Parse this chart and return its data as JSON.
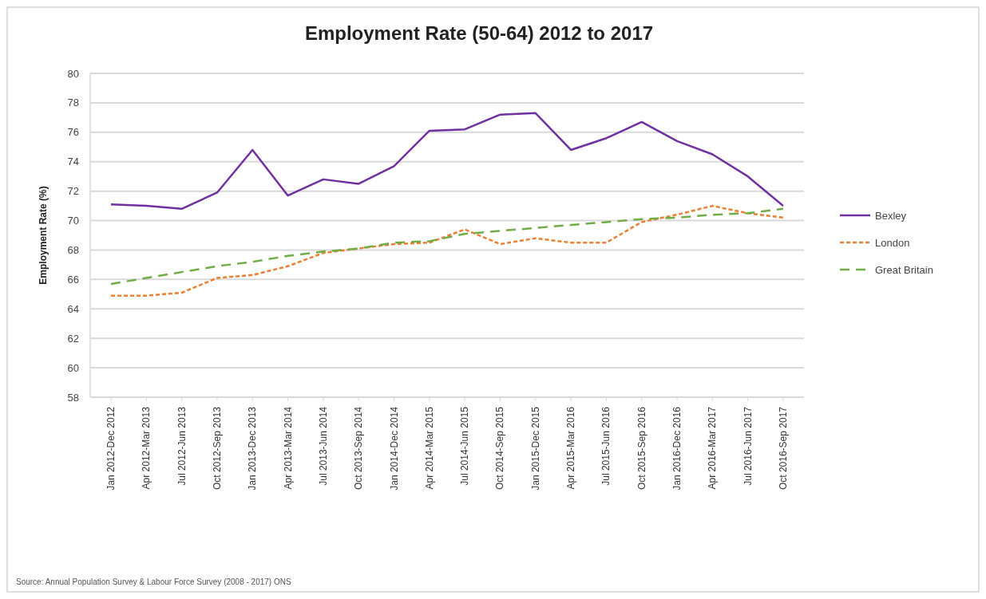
{
  "chart_data": {
    "type": "line",
    "title": "Employment Rate (50-64) 2012 to 2017",
    "ylabel": "Employment Rate (%)",
    "categories": [
      "Jan 2012-Dec 2012",
      "Apr 2012-Mar 2013",
      "Jul 2012-Jun 2013",
      "Oct 2012-Sep 2013",
      "Jan 2013-Dec 2013",
      "Apr 2013-Mar 2014",
      "Jul 2013-Jun 2014",
      "Oct 2013-Sep 2014",
      "Jan 2014-Dec 2014",
      "Apr 2014-Mar 2015",
      "Jul 2014-Jun 2015",
      "Oct 2014-Sep 2015",
      "Jan 2015-Dec 2015",
      "Apr 2015-Mar 2016",
      "Jul 2015-Jun 2016",
      "Oct 2015-Sep 2016",
      "Jan 2016-Dec 2016",
      "Apr 2016-Mar 2017",
      "Jul 2016-Jun 2017",
      "Oct 2016-Sep 2017"
    ],
    "series": [
      {
        "name": "Bexley",
        "color": "#7030a0",
        "line_style": "solid",
        "values": [
          71.1,
          71.0,
          70.8,
          71.9,
          74.8,
          71.7,
          72.8,
          72.5,
          73.7,
          76.1,
          76.2,
          77.2,
          77.3,
          74.8,
          75.6,
          76.7,
          75.4,
          74.5,
          73.0,
          71.0
        ]
      },
      {
        "name": "London",
        "color": "#ed7d31",
        "line_style": "dotted",
        "values": [
          64.9,
          64.9,
          65.1,
          66.1,
          66.3,
          66.9,
          67.8,
          68.1,
          68.4,
          68.5,
          69.4,
          68.4,
          68.8,
          68.5,
          68.5,
          69.9,
          70.4,
          71.0,
          70.5,
          70.2
        ]
      },
      {
        "name": "Great Britain",
        "color": "#70ad47",
        "line_style": "dashed",
        "values": [
          65.7,
          66.1,
          66.5,
          66.9,
          67.2,
          67.6,
          67.9,
          68.1,
          68.5,
          68.6,
          69.1,
          69.3,
          69.5,
          69.7,
          69.9,
          70.1,
          70.2,
          70.4,
          70.5,
          70.8
        ]
      }
    ],
    "ylim": [
      58,
      80
    ],
    "yticks": [
      58,
      60,
      62,
      64,
      66,
      68,
      70,
      72,
      74,
      76,
      78,
      80
    ],
    "grid": "y",
    "legend": "right",
    "marker": "none",
    "annotations": [
      "Source: Annual Population Survey & Labour Force Survey (2008 - 2017) ONS"
    ]
  }
}
